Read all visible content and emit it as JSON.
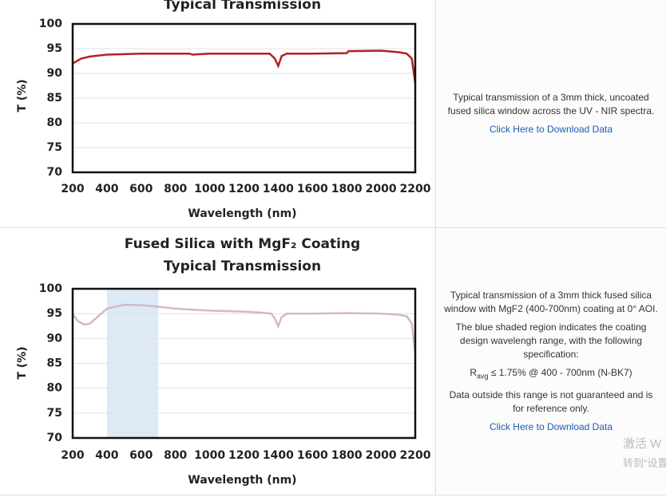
{
  "chart_data": [
    {
      "type": "line",
      "title": "Typical Transmission",
      "xlabel": "Wavelength (nm)",
      "ylabel": "T (%)",
      "x": [
        200,
        250,
        300,
        400,
        600,
        800,
        880,
        900,
        1000,
        1200,
        1350,
        1380,
        1400,
        1420,
        1450,
        1600,
        1800,
        1810,
        2000,
        2100,
        2150,
        2180,
        2200
      ],
      "values": [
        92,
        93,
        93.4,
        93.8,
        94,
        94,
        94,
        93.8,
        94,
        94,
        94,
        93,
        91.5,
        93.5,
        94,
        94,
        94.1,
        94.5,
        94.6,
        94.3,
        94,
        93,
        88
      ],
      "color": "#b22222",
      "xlim": [
        200,
        2200
      ],
      "xticks": [
        200,
        400,
        600,
        800,
        1000,
        1200,
        1400,
        1600,
        1800,
        2000,
        2200
      ],
      "ylim": [
        70,
        100
      ],
      "yticks": [
        70,
        75,
        80,
        85,
        90,
        95,
        100
      ],
      "grid": true
    },
    {
      "type": "line",
      "title": "Fused Silica with MgF₂ Coating",
      "subtitle": "Typical Transmission",
      "xlabel": "Wavelength (nm)",
      "ylabel": "T (%)",
      "x": [
        200,
        230,
        270,
        300,
        350,
        400,
        500,
        600,
        700,
        800,
        1000,
        1200,
        1300,
        1360,
        1380,
        1400,
        1420,
        1450,
        1600,
        1800,
        2000,
        2100,
        2150,
        2180,
        2200
      ],
      "values": [
        95,
        93.5,
        92.8,
        93,
        94.5,
        96,
        96.8,
        96.7,
        96.4,
        96,
        95.6,
        95.4,
        95.2,
        95,
        94,
        92.5,
        94.3,
        95,
        95,
        95.1,
        95,
        94.8,
        94.5,
        93,
        87
      ],
      "color": "#d4b8c4",
      "shaded_region": [
        400,
        700
      ],
      "shade_color": "#dde9f5",
      "xlim": [
        200,
        2200
      ],
      "xticks": [
        200,
        400,
        600,
        800,
        1000,
        1200,
        1400,
        1600,
        1800,
        2000,
        2200
      ],
      "ylim": [
        70,
        100
      ],
      "yticks": [
        70,
        75,
        80,
        85,
        90,
        95,
        100
      ],
      "grid": true
    }
  ],
  "descriptions": [
    {
      "paragraphs": [
        "Typical transmission of a 3mm thick, uncoated fused silica window across the UV - NIR spectra."
      ],
      "link": "Click Here to Download Data"
    },
    {
      "paragraphs": [
        "Typical transmission of a 3mm thick fused silica window with MgF2 (400-700nm) coating at 0° AOI.",
        "The blue shaded region indicates the coating design wavelengh range, with the following specification:"
      ],
      "spec": [
        "R",
        "avg",
        " ≤ 1.75% @ 400 - 700nm (N-BK7)"
      ],
      "note": "Data outside this range is not guaranteed and is for reference only.",
      "link": "Click Here to Download Data"
    }
  ],
  "watermark": [
    "激活 W",
    "转到“设置"
  ]
}
